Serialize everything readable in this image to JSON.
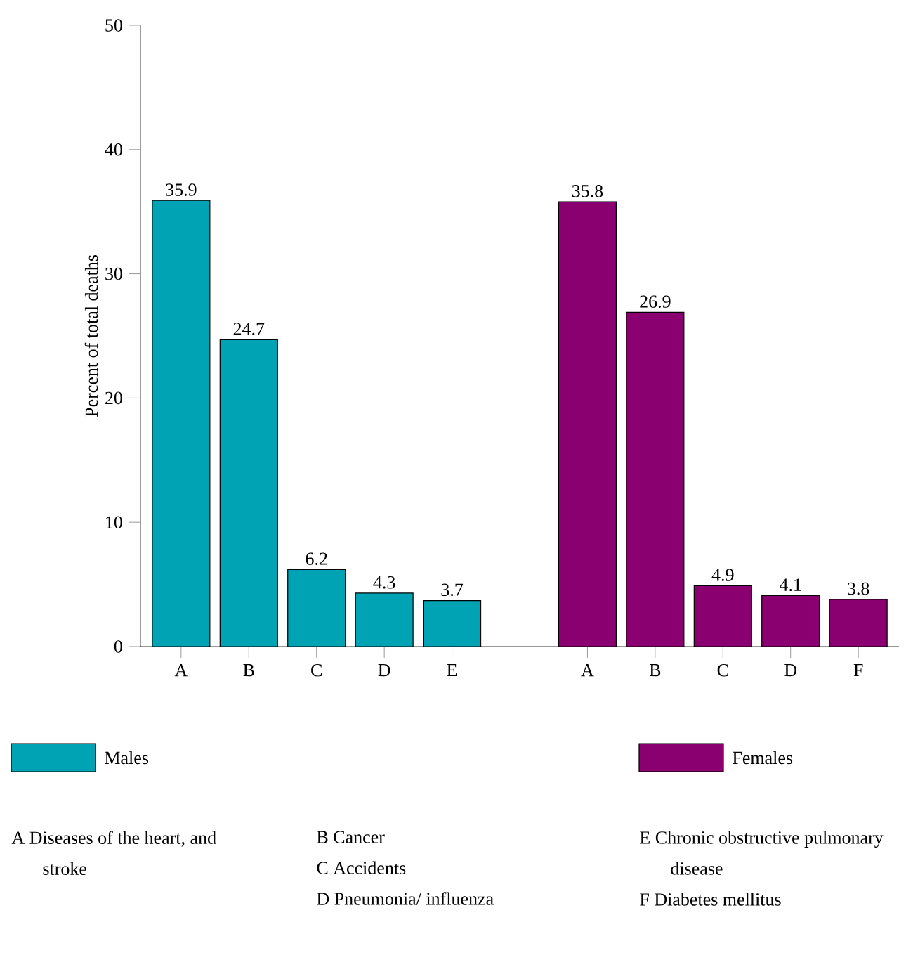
{
  "chart_data": {
    "type": "bar",
    "ylabel": "Percent of total deaths",
    "categories": [
      "A",
      "B",
      "C",
      "D",
      "E",
      null,
      "A",
      "B",
      "C",
      "D",
      "F"
    ],
    "series": [
      {
        "name": "Males",
        "color": "#00a3b4",
        "values": [
          35.9,
          24.7,
          6.2,
          4.3,
          3.7,
          null,
          null,
          null,
          null,
          null,
          null
        ]
      },
      {
        "name": "Females",
        "color": "#8a0070",
        "values": [
          null,
          null,
          null,
          null,
          null,
          null,
          35.8,
          26.9,
          4.9,
          4.1,
          3.8
        ]
      }
    ],
    "ylim": [
      0,
      50
    ],
    "yticks": [
      0,
      10,
      20,
      30,
      40,
      50
    ],
    "data_labels": true,
    "legend": "bottom",
    "annotations": [
      "A Diseases of the heart, and stroke",
      "B Cancer",
      "C Accidents",
      "D Pneumonia/ influenza",
      "E Chronic obstructive pulmonary disease",
      "F Diabetes mellitus"
    ]
  }
}
